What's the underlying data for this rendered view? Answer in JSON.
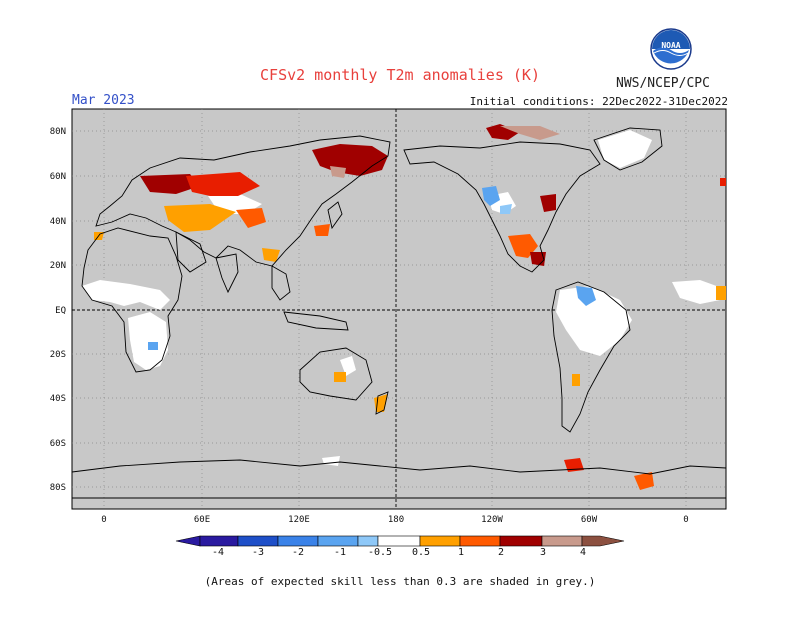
{
  "header": {
    "title": "CFSv2 monthly T2m anomalies (K)",
    "valid_month": "Mar 2023",
    "agency": "NWS/NCEP/CPC",
    "initial_conditions": "Initial conditions: 22Dec2022-31Dec2022",
    "logo_text": "NOAA"
  },
  "map": {
    "projection": "cylindrical, centered on 180",
    "lat_labels": [
      "80N",
      "60N",
      "40N",
      "20N",
      "EQ",
      "20S",
      "40S",
      "60S",
      "80S"
    ],
    "lon_labels": [
      "0",
      "60E",
      "120E",
      "180",
      "120W",
      "60W",
      "0"
    ],
    "background_color": "#c8c8c8",
    "reference_lines": "dashed equator and dateline"
  },
  "legend": {
    "labels": [
      "-4",
      "-3",
      "-2",
      "-1",
      "-0.5",
      "0.5",
      "1",
      "2",
      "3",
      "4"
    ],
    "colors": [
      "#2a1aa0",
      "#1e4fc8",
      "#3a82e8",
      "#5aa4f0",
      "#8ec8f8",
      "#ffffff",
      "#ffa000",
      "#ff5a00",
      "#e81e00",
      "#a00000",
      "#c89a8c",
      "#8c5040"
    ]
  },
  "footnote": "(Areas of expected skill less than 0.3 are shaded in grey.)"
}
